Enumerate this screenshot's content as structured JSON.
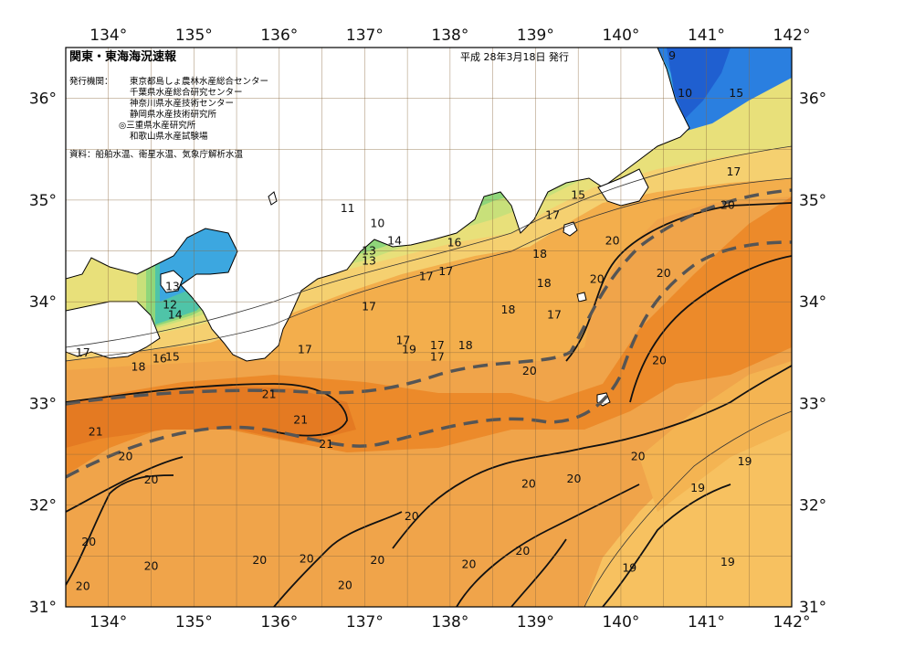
{
  "chart_data": {
    "type": "heatmap",
    "title": "関東・東海海況速報",
    "issue_date": "平成 28年3月18日 発行",
    "publishers_label": "発行機関：",
    "publishers": [
      "東京都島しょ農林水産総合センター",
      "千葉県水産総合研究センター",
      "神奈川県水産技術センター",
      "静岡県水産技術研究所",
      "◎三重県水産研究所",
      "和歌山県水産試験場"
    ],
    "source_note": "資料：船舶水温、衛星水温、気象庁解析水温",
    "x_ticks": [
      "134°",
      "135°",
      "136°",
      "137°",
      "138°",
      "139°",
      "140°",
      "141°",
      "142°"
    ],
    "y_ticks": [
      "36°",
      "35°",
      "34°",
      "33°",
      "32°",
      "31°"
    ],
    "xlim": [
      133.5,
      142
    ],
    "ylim": [
      31,
      36.5
    ],
    "grid": true,
    "units": "°C",
    "contour_labels": [
      {
        "text": "9",
        "lon": 140.6,
        "lat": 36.42
      },
      {
        "text": "10",
        "lon": 140.75,
        "lat": 36.05
      },
      {
        "text": "15",
        "lon": 141.35,
        "lat": 36.05
      },
      {
        "text": "17",
        "lon": 141.32,
        "lat": 35.28
      },
      {
        "text": "20",
        "lon": 141.25,
        "lat": 34.95
      },
      {
        "text": "15",
        "lon": 139.5,
        "lat": 35.05
      },
      {
        "text": "17",
        "lon": 139.2,
        "lat": 34.85
      },
      {
        "text": "11",
        "lon": 136.8,
        "lat": 34.92
      },
      {
        "text": "10",
        "lon": 137.15,
        "lat": 34.77
      },
      {
        "text": "14",
        "lon": 137.35,
        "lat": 34.6
      },
      {
        "text": "16",
        "lon": 138.05,
        "lat": 34.58
      },
      {
        "text": "13",
        "lon": 137.05,
        "lat": 34.5
      },
      {
        "text": "13",
        "lon": 137.05,
        "lat": 34.4
      },
      {
        "text": "18",
        "lon": 139.05,
        "lat": 34.47
      },
      {
        "text": "20",
        "lon": 139.9,
        "lat": 34.6
      },
      {
        "text": "17",
        "lon": 137.95,
        "lat": 34.3
      },
      {
        "text": "17",
        "lon": 137.72,
        "lat": 34.25
      },
      {
        "text": "18",
        "lon": 139.1,
        "lat": 34.18
      },
      {
        "text": "20",
        "lon": 139.72,
        "lat": 34.22
      },
      {
        "text": "20",
        "lon": 140.5,
        "lat": 34.28
      },
      {
        "text": "13",
        "lon": 134.75,
        "lat": 34.15
      },
      {
        "text": "12",
        "lon": 134.72,
        "lat": 33.97
      },
      {
        "text": "14",
        "lon": 134.78,
        "lat": 33.87
      },
      {
        "text": "17",
        "lon": 137.05,
        "lat": 33.95
      },
      {
        "text": "18",
        "lon": 138.68,
        "lat": 33.92
      },
      {
        "text": "17",
        "lon": 139.22,
        "lat": 33.87
      },
      {
        "text": "17",
        "lon": 137.45,
        "lat": 33.62
      },
      {
        "text": "17",
        "lon": 137.85,
        "lat": 33.57
      },
      {
        "text": "18",
        "lon": 138.18,
        "lat": 33.57
      },
      {
        "text": "19",
        "lon": 137.52,
        "lat": 33.53
      },
      {
        "text": "17",
        "lon": 137.85,
        "lat": 33.46
      },
      {
        "text": "17",
        "lon": 133.7,
        "lat": 33.5
      },
      {
        "text": "17",
        "lon": 136.3,
        "lat": 33.53
      },
      {
        "text": "16",
        "lon": 134.6,
        "lat": 33.44
      },
      {
        "text": "15",
        "lon": 134.75,
        "lat": 33.46
      },
      {
        "text": "18",
        "lon": 134.35,
        "lat": 33.36
      },
      {
        "text": "20",
        "lon": 138.93,
        "lat": 33.32
      },
      {
        "text": "20",
        "lon": 140.45,
        "lat": 33.42
      },
      {
        "text": "21",
        "lon": 135.88,
        "lat": 33.09
      },
      {
        "text": "21",
        "lon": 136.25,
        "lat": 32.84
      },
      {
        "text": "21",
        "lon": 133.85,
        "lat": 32.72
      },
      {
        "text": "21",
        "lon": 136.55,
        "lat": 32.6
      },
      {
        "text": "20",
        "lon": 134.2,
        "lat": 32.48
      },
      {
        "text": "20",
        "lon": 140.2,
        "lat": 32.48
      },
      {
        "text": "19",
        "lon": 141.45,
        "lat": 32.43
      },
      {
        "text": "20",
        "lon": 134.5,
        "lat": 32.25
      },
      {
        "text": "20",
        "lon": 139.45,
        "lat": 32.26
      },
      {
        "text": "20",
        "lon": 138.92,
        "lat": 32.21
      },
      {
        "text": "19",
        "lon": 140.9,
        "lat": 32.17
      },
      {
        "text": "20",
        "lon": 137.55,
        "lat": 31.89
      },
      {
        "text": "20",
        "lon": 133.77,
        "lat": 31.64
      },
      {
        "text": "20",
        "lon": 138.85,
        "lat": 31.55
      },
      {
        "text": "20",
        "lon": 135.77,
        "lat": 31.46
      },
      {
        "text": "20",
        "lon": 136.32,
        "lat": 31.47
      },
      {
        "text": "20",
        "lon": 137.15,
        "lat": 31.46
      },
      {
        "text": "20",
        "lon": 134.5,
        "lat": 31.4
      },
      {
        "text": "20",
        "lon": 138.22,
        "lat": 31.42
      },
      {
        "text": "19",
        "lon": 140.1,
        "lat": 31.38
      },
      {
        "text": "19",
        "lon": 141.25,
        "lat": 31.44
      },
      {
        "text": "20",
        "lon": 136.77,
        "lat": 31.21
      },
      {
        "text": "20",
        "lon": 133.7,
        "lat": 31.2
      }
    ]
  }
}
